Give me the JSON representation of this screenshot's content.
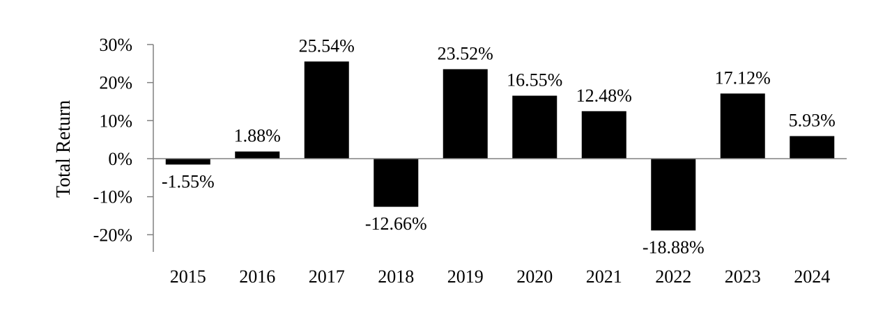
{
  "chart_data": {
    "type": "bar",
    "categories": [
      "2015",
      "2016",
      "2017",
      "2018",
      "2019",
      "2020",
      "2021",
      "2022",
      "2023",
      "2024"
    ],
    "values": [
      -1.55,
      1.88,
      25.54,
      -12.66,
      23.52,
      16.55,
      12.48,
      -18.88,
      17.12,
      5.93
    ],
    "data_labels": [
      "-1.55%",
      "1.88%",
      "25.54%",
      "-12.66%",
      "23.52%",
      "16.55%",
      "12.48%",
      "-18.88%",
      "17.12%",
      "5.93%"
    ],
    "title": "",
    "xlabel": "",
    "ylabel": "Total Return",
    "ylim": [
      -25,
      30
    ],
    "yticks": [
      30,
      20,
      10,
      0,
      -10,
      -20
    ],
    "ytick_labels": [
      "30%",
      "20%",
      "10%",
      "0%",
      "-10%",
      "-20%"
    ],
    "bar_color": "#000000",
    "axis_color": "#808080",
    "grid": false,
    "legend": "none"
  }
}
